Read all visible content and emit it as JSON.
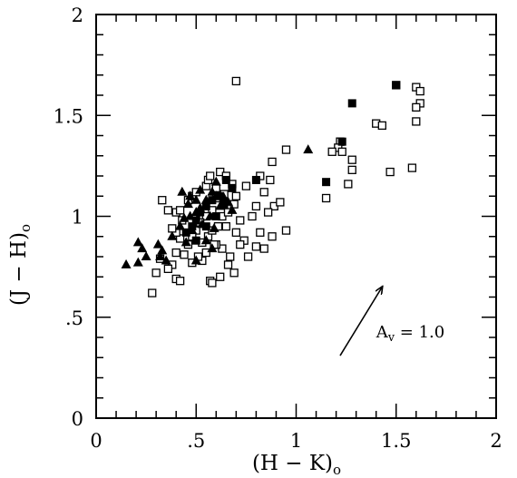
{
  "chart_data": {
    "type": "scatter",
    "title": "",
    "xlabel": "(H − K)",
    "xlabel_sub": "o",
    "ylabel": "(J − H)",
    "ylabel_sub": "o",
    "xlim": [
      0,
      2
    ],
    "ylim": [
      0,
      2
    ],
    "xticks": [
      {
        "value": 0,
        "label": "0"
      },
      {
        "value": 0.5,
        "label": ".5"
      },
      {
        "value": 1,
        "label": "1"
      },
      {
        "value": 1.5,
        "label": "1.5"
      },
      {
        "value": 2,
        "label": "2"
      }
    ],
    "yticks": [
      {
        "value": 0,
        "label": "0"
      },
      {
        "value": 0.5,
        "label": ".5"
      },
      {
        "value": 1,
        "label": "1"
      },
      {
        "value": 1.5,
        "label": "1.5"
      },
      {
        "value": 2,
        "label": "2"
      }
    ],
    "minor_step": 0.1,
    "grid": false,
    "legend": "none",
    "series": [
      {
        "marker": "open-square",
        "points": [
          [
            0.7,
            1.67
          ],
          [
            1.5,
            1.65
          ],
          [
            1.6,
            1.64
          ],
          [
            1.62,
            1.62
          ],
          [
            1.62,
            1.56
          ],
          [
            1.6,
            1.54
          ],
          [
            1.6,
            1.47
          ],
          [
            1.4,
            1.46
          ],
          [
            1.43,
            1.45
          ],
          [
            1.22,
            1.37
          ],
          [
            1.21,
            1.34
          ],
          [
            1.23,
            1.32
          ],
          [
            1.18,
            1.32
          ],
          [
            1.28,
            1.28
          ],
          [
            1.28,
            1.23
          ],
          [
            1.58,
            1.24
          ],
          [
            1.47,
            1.22
          ],
          [
            1.26,
            1.16
          ],
          [
            1.15,
            1.09
          ],
          [
            0.95,
            1.33
          ],
          [
            0.88,
            1.27
          ],
          [
            0.82,
            1.2
          ],
          [
            0.87,
            1.18
          ],
          [
            0.62,
            1.22
          ],
          [
            0.65,
            1.2
          ],
          [
            0.68,
            1.16
          ],
          [
            0.6,
            1.14
          ],
          [
            0.64,
            1.11
          ],
          [
            0.7,
            1.1
          ],
          [
            0.75,
            1.15
          ],
          [
            0.84,
            1.12
          ],
          [
            0.89,
            1.05
          ],
          [
            0.92,
            1.07
          ],
          [
            0.8,
            1.05
          ],
          [
            0.86,
            1.02
          ],
          [
            0.78,
            1.0
          ],
          [
            0.72,
            0.98
          ],
          [
            0.82,
            0.92
          ],
          [
            0.88,
            0.9
          ],
          [
            0.95,
            0.93
          ],
          [
            0.84,
            0.84
          ],
          [
            0.8,
            0.85
          ],
          [
            0.74,
            0.88
          ],
          [
            0.7,
            0.92
          ],
          [
            0.65,
            0.95
          ],
          [
            0.72,
            0.86
          ],
          [
            0.76,
            0.8
          ],
          [
            0.67,
            0.8
          ],
          [
            0.63,
            0.84
          ],
          [
            0.6,
            0.86
          ],
          [
            0.66,
            0.76
          ],
          [
            0.69,
            0.72
          ],
          [
            0.62,
            0.7
          ],
          [
            0.57,
            0.68
          ],
          [
            0.58,
            0.67
          ],
          [
            0.53,
            0.78
          ],
          [
            0.51,
            0.8
          ],
          [
            0.48,
            0.77
          ],
          [
            0.44,
            0.81
          ],
          [
            0.4,
            0.82
          ],
          [
            0.38,
            0.76
          ],
          [
            0.36,
            0.74
          ],
          [
            0.32,
            0.79
          ],
          [
            0.3,
            0.72
          ],
          [
            0.28,
            0.62
          ],
          [
            0.4,
            0.69
          ],
          [
            0.42,
            0.68
          ],
          [
            0.46,
            0.86
          ],
          [
            0.42,
            0.89
          ],
          [
            0.4,
            0.92
          ],
          [
            0.38,
            0.94
          ],
          [
            0.43,
            0.98
          ],
          [
            0.4,
            1.02
          ],
          [
            0.42,
            1.03
          ],
          [
            0.36,
            1.03
          ],
          [
            0.33,
            1.08
          ],
          [
            0.46,
            1.08
          ],
          [
            0.48,
            1.1
          ],
          [
            0.5,
            1.12
          ],
          [
            0.55,
            1.15
          ],
          [
            0.56,
            1.18
          ],
          [
            0.57,
            1.2
          ],
          [
            0.6,
            1.09
          ],
          [
            0.58,
            1.03
          ],
          [
            0.55,
            1.0
          ],
          [
            0.52,
            0.97
          ],
          [
            0.5,
            0.93
          ],
          [
            0.48,
            0.9
          ],
          [
            0.53,
            0.87
          ],
          [
            0.56,
            0.9
          ],
          [
            0.58,
            0.93
          ],
          [
            0.61,
            0.95
          ],
          [
            0.63,
            1.0
          ],
          [
            0.66,
            1.04
          ],
          [
            0.69,
            1.06
          ],
          [
            0.66,
            1.02
          ],
          [
            0.59,
            0.86
          ],
          [
            0.55,
            0.82
          ]
        ]
      },
      {
        "marker": "filled-square",
        "points": [
          [
            1.28,
            1.56
          ],
          [
            1.5,
            1.65
          ],
          [
            1.23,
            1.37
          ],
          [
            1.15,
            1.17
          ],
          [
            0.8,
            1.18
          ],
          [
            0.65,
            1.18
          ],
          [
            0.68,
            1.14
          ],
          [
            0.62,
            1.1
          ],
          [
            0.58,
            1.08
          ],
          [
            0.55,
            1.05
          ],
          [
            0.52,
            1.02
          ],
          [
            0.5,
            0.98
          ],
          [
            0.55,
            0.95
          ],
          [
            0.48,
            0.95
          ],
          [
            0.6,
            1.0
          ],
          [
            0.5,
            0.88
          ],
          [
            0.64,
            1.06
          ],
          [
            0.45,
            0.92
          ]
        ]
      },
      {
        "marker": "filled-triangle",
        "points": [
          [
            1.06,
            1.33
          ],
          [
            0.15,
            0.76
          ],
          [
            0.21,
            0.87
          ],
          [
            0.23,
            0.84
          ],
          [
            0.25,
            0.8
          ],
          [
            0.21,
            0.77
          ],
          [
            0.31,
            0.86
          ],
          [
            0.33,
            0.83
          ],
          [
            0.32,
            0.8
          ],
          [
            0.35,
            0.78
          ],
          [
            0.5,
            0.78
          ],
          [
            0.58,
            0.84
          ],
          [
            0.55,
            0.88
          ],
          [
            0.42,
            0.95
          ],
          [
            0.44,
            0.99
          ],
          [
            0.47,
            1.0
          ],
          [
            0.5,
            1.02
          ],
          [
            0.52,
            1.04
          ],
          [
            0.46,
            1.06
          ],
          [
            0.5,
            1.08
          ],
          [
            0.55,
            1.08
          ],
          [
            0.6,
            1.1
          ],
          [
            0.58,
            1.12
          ],
          [
            0.64,
            1.09
          ],
          [
            0.62,
            1.05
          ],
          [
            0.66,
            1.07
          ],
          [
            0.57,
            1.0
          ],
          [
            0.53,
            0.96
          ],
          [
            0.59,
            0.94
          ],
          [
            0.48,
            0.93
          ],
          [
            0.43,
            1.12
          ],
          [
            0.47,
            1.1
          ],
          [
            0.52,
            1.13
          ],
          [
            0.6,
            1.17
          ],
          [
            0.68,
            1.03
          ],
          [
            0.45,
            0.87
          ],
          [
            0.38,
            0.9
          ]
        ]
      }
    ],
    "annotations": [
      {
        "type": "arrow",
        "from": [
          1.22,
          0.31
        ],
        "to": [
          1.43,
          0.65
        ]
      },
      {
        "type": "text",
        "label": "A",
        "sub": "v",
        "rest": " = 1.0",
        "at": [
          1.4,
          0.4
        ]
      }
    ]
  }
}
